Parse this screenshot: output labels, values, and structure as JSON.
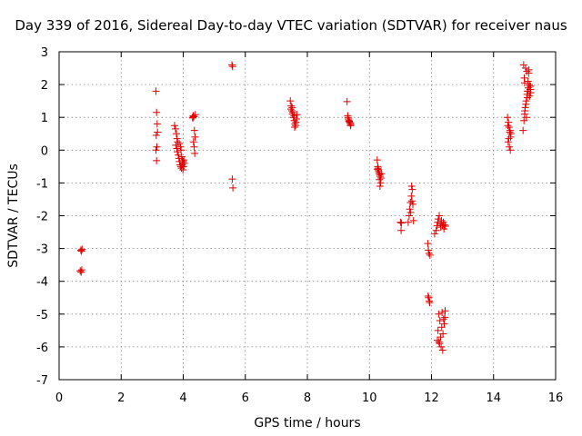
{
  "chart_data": {
    "type": "scatter",
    "title": "Day 339 of 2016, Sidereal Day-to-day VTEC variation (SDTVAR) for receiver naus",
    "xlabel": "GPS time / hours",
    "ylabel": "SDTVAR / TECUs",
    "xlim": [
      0,
      16
    ],
    "ylim": [
      -7,
      3
    ],
    "x_ticks": [
      "0",
      "2",
      "4",
      "6",
      "8",
      "10",
      "12",
      "14",
      "16"
    ],
    "y_ticks": [
      "-7",
      "-6",
      "-5",
      "-4",
      "-3",
      "-2",
      "-1",
      "0",
      "1",
      "2",
      "3"
    ],
    "grid": true,
    "marker": "+",
    "color": "#e00000",
    "series": [
      {
        "name": "SDTVAR",
        "x": [
          0.7,
          0.72,
          0.74,
          0.68,
          0.71,
          0.73,
          3.12,
          3.14,
          3.16,
          3.13,
          3.15,
          3.12,
          3.14,
          3.17,
          3.72,
          3.75,
          3.78,
          3.8,
          3.82,
          3.76,
          3.79,
          3.81,
          3.84,
          3.86,
          3.88,
          3.9,
          3.92,
          3.94,
          3.96,
          3.98,
          4.0,
          4.02,
          3.87,
          3.91,
          3.95,
          3.99,
          4.03,
          3.93,
          3.97,
          4.01,
          4.3,
          4.32,
          4.34,
          4.36,
          4.38,
          4.33,
          4.35,
          4.37,
          4.31,
          4.39,
          5.57,
          5.59,
          5.58,
          5.6,
          7.45,
          7.48,
          7.5,
          7.52,
          7.55,
          7.58,
          7.6,
          7.62,
          7.65,
          7.47,
          7.53,
          7.57,
          7.63,
          7.67,
          7.51,
          7.59,
          9.28,
          9.3,
          9.32,
          9.34,
          9.36,
          9.38,
          9.4,
          9.31,
          9.35,
          9.39,
          10.25,
          10.27,
          10.29,
          10.31,
          10.33,
          10.35,
          10.37,
          10.28,
          10.32,
          10.36,
          10.3,
          10.34,
          10.26,
          10.38,
          11.0,
          11.02,
          11.03,
          11.25,
          11.28,
          11.3,
          11.32,
          11.35,
          11.38,
          11.4,
          11.42,
          11.33,
          11.37,
          11.36,
          11.88,
          11.9,
          11.92,
          11.95,
          11.89,
          11.93,
          11.91,
          11.94,
          12.1,
          12.15,
          12.18,
          12.2,
          12.22,
          12.25,
          12.28,
          12.3,
          12.32,
          12.35,
          12.38,
          12.4,
          12.42,
          12.45,
          12.23,
          12.27,
          12.33,
          12.37,
          12.19,
          12.26,
          12.31,
          12.36,
          12.41,
          12.21,
          12.29,
          12.34,
          12.39,
          12.44,
          12.24,
          12.43,
          14.45,
          14.48,
          14.5,
          14.52,
          14.55,
          14.47,
          14.51,
          14.53,
          14.49,
          14.54,
          14.46,
          14.56,
          14.95,
          14.98,
          15.0,
          15.02,
          15.05,
          15.08,
          15.1,
          15.12,
          15.15,
          15.18,
          15.2,
          14.97,
          15.03,
          15.07,
          15.13,
          15.17,
          15.01,
          15.09,
          15.19,
          15.04,
          15.11,
          15.16,
          14.99,
          15.06,
          15.14,
          15.0,
          15.1
        ],
        "y": [
          -3.05,
          -3.08,
          -3.02,
          -3.68,
          -3.72,
          -3.65,
          1.8,
          1.15,
          0.8,
          0.45,
          0.1,
          0.0,
          -0.32,
          0.55,
          0.75,
          0.65,
          0.5,
          0.35,
          0.25,
          0.15,
          0.05,
          -0.05,
          -0.15,
          -0.25,
          -0.35,
          -0.45,
          -0.5,
          -0.55,
          -0.45,
          -0.4,
          -0.35,
          -0.3,
          0.2,
          0.1,
          -0.2,
          -0.6,
          -0.4,
          0.0,
          -0.3,
          -0.5,
          1.0,
          1.05,
          1.02,
          0.6,
          0.4,
          0.25,
          0.1,
          -0.1,
          0.98,
          1.08,
          2.6,
          2.55,
          -0.88,
          -1.15,
          1.5,
          1.35,
          1.2,
          1.1,
          1.0,
          0.9,
          0.8,
          0.75,
          0.95,
          1.25,
          1.15,
          1.05,
          0.85,
          1.08,
          1.3,
          0.7,
          1.48,
          1.05,
          0.95,
          0.9,
          0.85,
          0.82,
          0.78,
          1.0,
          0.88,
          0.75,
          -0.3,
          -0.5,
          -0.6,
          -0.7,
          -0.75,
          -0.8,
          -0.85,
          -0.55,
          -0.9,
          -1.0,
          -0.65,
          -1.1,
          -0.58,
          -0.72,
          -2.2,
          -2.45,
          -2.22,
          -2.2,
          -2.0,
          -1.8,
          -1.6,
          -1.4,
          -1.2,
          -1.65,
          -2.15,
          -1.9,
          -1.55,
          -1.1,
          -2.85,
          -3.05,
          -3.15,
          -3.2,
          -4.45,
          -4.6,
          -4.5,
          -4.65,
          -2.55,
          -2.45,
          -2.3,
          -2.2,
          -2.1,
          -2.0,
          -2.25,
          -2.35,
          -2.15,
          -2.3,
          -2.2,
          -2.4,
          -2.28,
          -2.32,
          -5.0,
          -5.2,
          -5.4,
          -5.6,
          -5.8,
          -5.9,
          -6.0,
          -6.1,
          -5.3,
          -5.5,
          -5.7,
          -4.95,
          -5.15,
          -4.9,
          -5.85,
          -5.1,
          1.0,
          0.85,
          0.7,
          0.55,
          0.4,
          0.25,
          0.1,
          0.6,
          0.35,
          0.0,
          0.75,
          0.5,
          0.6,
          0.9,
          1.1,
          1.3,
          1.5,
          1.7,
          1.8,
          1.9,
          2.0,
          1.85,
          1.75,
          2.6,
          2.5,
          2.4,
          2.35,
          1.95,
          1.2,
          1.6,
          1.95,
          1.4,
          2.1,
          1.65,
          2.2,
          1.0,
          2.45,
          2.05,
          1.8
        ]
      }
    ]
  }
}
